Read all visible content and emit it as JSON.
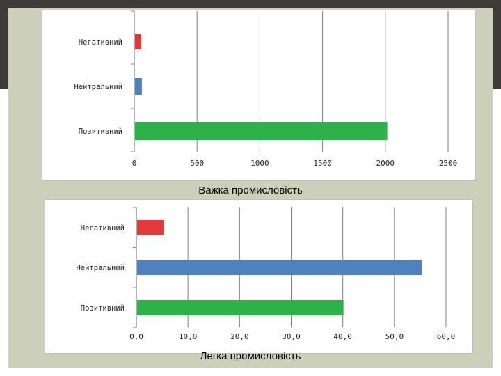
{
  "captions": {
    "chart1": "Важка промисловість",
    "chart2": "Легка промисловість"
  },
  "colors": {
    "negative": "#e23a3a",
    "neutral": "#4f81bd",
    "positive": "#2bb34a",
    "grid": "#7f7f7f",
    "background_band": "#3f3b39",
    "slide_panel": "#cdd0b8"
  },
  "chart_data": [
    {
      "type": "bar",
      "orientation": "horizontal",
      "categories": [
        "Негативний",
        "Нейтральний",
        "Позитивний"
      ],
      "values": [
        50,
        55,
        2010
      ],
      "xlim": [
        0,
        2500
      ],
      "xticks": [
        "0",
        "500",
        "1000",
        "1500",
        "2000",
        "2500"
      ],
      "grid": true,
      "title": "Важка промисловість"
    },
    {
      "type": "bar",
      "orientation": "horizontal",
      "categories": [
        "Негативний",
        "Нейтральний",
        "Позитивний"
      ],
      "values": [
        5.2,
        55.2,
        40.0
      ],
      "xlim": [
        0,
        60
      ],
      "xticks": [
        "0,0",
        "10,0",
        "20,0",
        "30,0",
        "40,0",
        "50,0",
        "60,0"
      ],
      "grid": true,
      "title": "Легка промисловість"
    }
  ]
}
